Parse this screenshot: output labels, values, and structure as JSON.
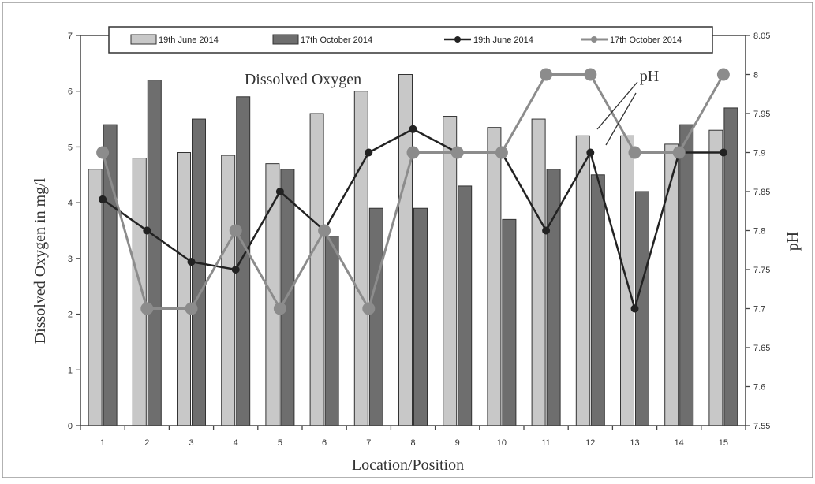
{
  "chart_data": {
    "type": "bar+line",
    "x_label": "Location/Position",
    "y_label_left": "Dissolved Oxygen in mg/l",
    "y_label_right": "pH",
    "annotations": [
      "Dissolved Oxygen",
      "pH"
    ],
    "categories": [
      "1",
      "2",
      "3",
      "4",
      "5",
      "6",
      "7",
      "8",
      "9",
      "10",
      "11",
      "12",
      "13",
      "14",
      "15"
    ],
    "y_left_range": [
      0,
      7
    ],
    "y_left_ticks": [
      "0",
      "1",
      "2",
      "3",
      "4",
      "5",
      "6",
      "7"
    ],
    "y_right_range": [
      7.55,
      8.05
    ],
    "y_right_ticks": [
      "7.55",
      "7.6",
      "7.65",
      "7.7",
      "7.75",
      "7.8",
      "7.85",
      "7.9",
      "7.95",
      "8",
      "8.05"
    ],
    "bar_series": [
      {
        "name": "19th June 2014",
        "color": "#c8c8c8",
        "values": [
          4.6,
          4.8,
          4.9,
          4.85,
          4.7,
          5.6,
          6.0,
          6.3,
          5.55,
          5.35,
          5.5,
          5.2,
          5.2,
          5.05,
          5.3
        ]
      },
      {
        "name": "17th October 2014",
        "color": "#6e6e6e",
        "values": [
          5.4,
          6.2,
          5.5,
          5.9,
          4.6,
          3.4,
          3.9,
          3.9,
          4.3,
          3.7,
          4.6,
          4.5,
          4.2,
          5.4,
          5.7
        ]
      }
    ],
    "line_series": [
      {
        "name": "19th June 2014",
        "color": "#222222",
        "marker": "diamond",
        "values": [
          7.84,
          7.8,
          7.76,
          7.75,
          7.85,
          7.8,
          7.9,
          7.93,
          7.9,
          7.9,
          7.8,
          7.9,
          7.7,
          7.9,
          7.9
        ]
      },
      {
        "name": "17th October 2014",
        "color": "#8c8c8c",
        "marker": "circle",
        "values": [
          7.9,
          7.7,
          7.7,
          7.8,
          7.7,
          7.8,
          7.7,
          7.9,
          7.9,
          7.9,
          8.0,
          8.0,
          7.9,
          7.9,
          8.0
        ]
      }
    ],
    "legend": [
      {
        "label": "19th June 2014",
        "kind": "bar",
        "color": "#c8c8c8"
      },
      {
        "label": "17th October 2014",
        "kind": "bar",
        "color": "#6e6e6e"
      },
      {
        "label": "19th June 2014",
        "kind": "line",
        "color": "#222222"
      },
      {
        "label": "17th October 2014",
        "kind": "line",
        "color": "#8c8c8c"
      }
    ],
    "legend_position": "top",
    "grid": false
  }
}
